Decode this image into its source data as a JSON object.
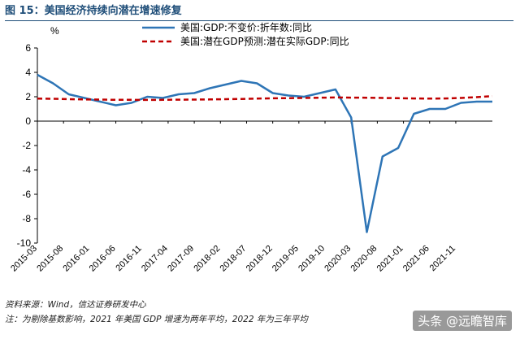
{
  "figure_title": "图 15：美国经济持续向潜在增速修复",
  "notes": {
    "source": "资料来源：Wind，信达证券研发中心",
    "footnote": "注：为剔除基数影响，2021 年美国 GDP 增速为两年平均，2022 年为三年平均"
  },
  "watermark": "头条 @远瞻智库",
  "chart_data": {
    "type": "line",
    "title": "",
    "y_unit": "%",
    "ylim": [
      -10,
      6
    ],
    "yticks": [
      -10,
      -8,
      -6,
      -4,
      -2,
      0,
      2,
      4,
      6
    ],
    "grid": false,
    "legend_position": "top",
    "x_tick_labels": [
      "2015-03",
      "2015-08",
      "2016-01",
      "2016-06",
      "2016-11",
      "2017-04",
      "2017-09",
      "2018-02",
      "2018-07",
      "2018-12",
      "2019-05",
      "2019-10",
      "2020-03",
      "2020-08",
      "2021-01",
      "2021-06",
      "2021-11"
    ],
    "x": [
      "2015-03",
      "2015-06",
      "2015-09",
      "2015-12",
      "2016-03",
      "2016-06",
      "2016-09",
      "2016-12",
      "2017-03",
      "2017-06",
      "2017-09",
      "2017-12",
      "2018-03",
      "2018-06",
      "2018-09",
      "2018-12",
      "2019-03",
      "2019-06",
      "2019-09",
      "2019-12",
      "2020-03",
      "2020-06",
      "2020-09",
      "2020-12",
      "2021-03",
      "2021-06",
      "2021-09",
      "2021-12",
      "2022-03",
      "2022-06"
    ],
    "series": [
      {
        "name": "美国:GDP:不变价:折年数:同比",
        "color": "#2e75b6",
        "style": "solid",
        "values": [
          3.8,
          3.1,
          2.2,
          1.9,
          1.6,
          1.3,
          1.5,
          2.0,
          1.9,
          2.2,
          2.3,
          2.7,
          3.0,
          3.3,
          3.1,
          2.3,
          2.1,
          2.0,
          2.3,
          2.6,
          0.3,
          -9.1,
          -2.9,
          -2.2,
          0.6,
          1.0,
          1.0,
          1.5,
          1.6,
          1.6
        ]
      },
      {
        "name": "美国:潜在GDP预测:潜在实际GDP:同比",
        "color": "#c00000",
        "style": "dashed",
        "values": [
          1.85,
          1.83,
          1.8,
          1.78,
          1.77,
          1.75,
          1.75,
          1.74,
          1.75,
          1.76,
          1.77,
          1.78,
          1.8,
          1.82,
          1.85,
          1.87,
          1.89,
          1.9,
          1.92,
          1.94,
          1.93,
          1.92,
          1.9,
          1.88,
          1.86,
          1.85,
          1.86,
          1.9,
          1.97,
          2.05
        ]
      }
    ]
  }
}
